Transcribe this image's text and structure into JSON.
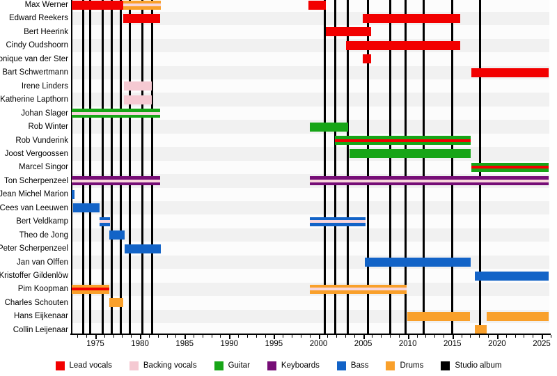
{
  "colors": {
    "lead": "#f20000",
    "backing": "#f5c9d2",
    "guitar": "#17a517",
    "keyboards": "#760d76",
    "bass": "#1263c7",
    "drums": "#f9a02b",
    "album": "#000000",
    "stripe_backing": "#f7d6dc",
    "row_stripe": "#f1f1f1",
    "row_plain": "#fcfcfc"
  },
  "legend": [
    {
      "label": "Lead vocals",
      "color_key": "lead"
    },
    {
      "label": "Backing vocals",
      "color_key": "backing"
    },
    {
      "label": "Guitar",
      "color_key": "guitar"
    },
    {
      "label": "Keyboards",
      "color_key": "keyboards"
    },
    {
      "label": "Bass",
      "color_key": "bass"
    },
    {
      "label": "Drums",
      "color_key": "drums"
    },
    {
      "label": "Studio album",
      "color_key": "album"
    }
  ],
  "chart_data": {
    "type": "timeline",
    "x_axis": {
      "major_ticks": [
        1975,
        1980,
        1985,
        1990,
        1995,
        2000,
        2005,
        2010,
        2015,
        2020,
        2025
      ],
      "minor_tick_start": 1973,
      "minor_tick_end": 2026,
      "min_year": 1972.35,
      "max_year": 2026.2
    },
    "albums": [
      1973.65,
      1974.45,
      1975.85,
      1976.8,
      1977.85,
      1978.9,
      1980.3,
      1981.35,
      2000.7,
      2001.9,
      2003.25,
      2005.55,
      2008.0,
      2009.75,
      2011.75,
      2014.95,
      2018.1
    ],
    "members": [
      {
        "name": "Max Werner",
        "bars": [
          {
            "from": 1972.35,
            "to": 1978.15,
            "role": "lead"
          },
          {
            "from": 1978.15,
            "to": 1982.3,
            "role": "drums",
            "stripe": "backing"
          },
          {
            "from": 1998.9,
            "to": 2000.85,
            "role": "lead"
          }
        ]
      },
      {
        "name": "Edward Reekers",
        "bars": [
          {
            "from": 1978.15,
            "to": 1982.25,
            "role": "lead"
          },
          {
            "from": 2004.95,
            "to": 2015.85,
            "role": "lead"
          }
        ]
      },
      {
        "name": "Bert Heerink",
        "bars": [
          {
            "from": 2000.8,
            "to": 2005.9,
            "role": "lead"
          }
        ]
      },
      {
        "name": "Cindy Oudshoorn",
        "bars": [
          {
            "from": 2003.1,
            "to": 2015.85,
            "role": "lead"
          }
        ]
      },
      {
        "name": "Monique van der Ster",
        "bars": [
          {
            "from": 2004.95,
            "to": 2005.9,
            "role": "lead"
          }
        ]
      },
      {
        "name": "Bart Schwertmann",
        "bars": [
          {
            "from": 2017.1,
            "to": 2025.75,
            "role": "lead"
          }
        ]
      },
      {
        "name": "Irene Linders",
        "bars": [
          {
            "from": 1978.2,
            "to": 1981.35,
            "role": "backing"
          }
        ]
      },
      {
        "name": "Katherine Lapthorn",
        "bars": [
          {
            "from": 1978.2,
            "to": 1981.35,
            "role": "backing"
          }
        ]
      },
      {
        "name": "Johan Slager",
        "bars": [
          {
            "from": 1972.35,
            "to": 1982.25,
            "role": "guitar",
            "stripe": "backing"
          }
        ]
      },
      {
        "name": "Rob Winter",
        "bars": [
          {
            "from": 1999.0,
            "to": 2003.35,
            "role": "guitar"
          }
        ]
      },
      {
        "name": "Rob Vunderink",
        "bars": [
          {
            "from": 2001.8,
            "to": 2017.05,
            "role": "guitar",
            "stripe": "lead"
          }
        ]
      },
      {
        "name": "Joost Vergoossen",
        "bars": [
          {
            "from": 2003.45,
            "to": 2017.05,
            "role": "guitar"
          }
        ]
      },
      {
        "name": "Marcel Singor",
        "bars": [
          {
            "from": 2017.1,
            "to": 2025.75,
            "role": "guitar",
            "stripe": "lead"
          }
        ]
      },
      {
        "name": "Ton Scherpenzeel",
        "bars": [
          {
            "from": 1972.35,
            "to": 1982.25,
            "role": "keyboards",
            "stripe": "backing"
          },
          {
            "from": 1999.0,
            "to": 2025.75,
            "role": "keyboards",
            "stripe": "backing"
          }
        ]
      },
      {
        "name": "Jean Michel Marion",
        "bars": [
          {
            "from": 1972.35,
            "to": 1972.65,
            "role": "bass"
          }
        ]
      },
      {
        "name": "Cees van Leeuwen",
        "bars": [
          {
            "from": 1972.5,
            "to": 1975.5,
            "role": "bass"
          }
        ]
      },
      {
        "name": "Bert Veldkamp",
        "bars": [
          {
            "from": 1975.45,
            "to": 1976.6,
            "role": "bass",
            "stripe": "backing"
          },
          {
            "from": 1999.0,
            "to": 2005.25,
            "role": "bass",
            "stripe": "backing"
          }
        ]
      },
      {
        "name": "Theo de Jong",
        "bars": [
          {
            "from": 1976.55,
            "to": 1978.25,
            "role": "bass"
          }
        ]
      },
      {
        "name": "Peter Scherpenzeel",
        "bars": [
          {
            "from": 1978.25,
            "to": 1982.3,
            "role": "bass"
          }
        ]
      },
      {
        "name": "Jan van Olffen",
        "bars": [
          {
            "from": 2005.2,
            "to": 2017.05,
            "role": "bass"
          }
        ]
      },
      {
        "name": "Kristoffer Gildenlöw",
        "bars": [
          {
            "from": 2017.5,
            "to": 2025.75,
            "role": "bass"
          }
        ]
      },
      {
        "name": "Pim Koopman",
        "bars": [
          {
            "from": 1972.35,
            "to": 1976.55,
            "role": "drums",
            "stripe": "lead"
          },
          {
            "from": 1999.0,
            "to": 2009.9,
            "role": "drums",
            "stripe": "backing"
          }
        ]
      },
      {
        "name": "Charles Schouten",
        "bars": [
          {
            "from": 1976.55,
            "to": 1978.1,
            "role": "drums"
          }
        ]
      },
      {
        "name": "Hans Eijkenaar",
        "bars": [
          {
            "from": 2009.95,
            "to": 2017.0,
            "role": "drums"
          },
          {
            "from": 2018.8,
            "to": 2025.75,
            "role": "drums"
          }
        ]
      },
      {
        "name": "Collin Leijenaar",
        "bars": [
          {
            "from": 2017.5,
            "to": 2018.85,
            "role": "drums"
          }
        ]
      }
    ]
  }
}
